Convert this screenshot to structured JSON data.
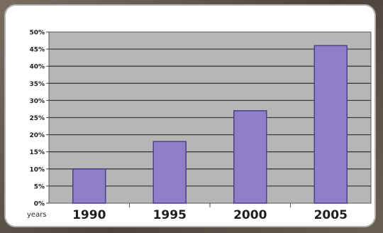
{
  "chart_data": {
    "type": "bar",
    "categories": [
      "1990",
      "1995",
      "2000",
      "2005"
    ],
    "values": [
      10,
      18,
      27,
      46
    ],
    "xlabel": "years",
    "ylabel": "",
    "ylim": [
      0,
      50
    ],
    "y_step": 5,
    "y_ticks": [
      "0%",
      "5%",
      "10%",
      "15%",
      "20%",
      "25%",
      "30%",
      "35%",
      "40%",
      "45%",
      "50%"
    ],
    "grid": true,
    "legend": "none",
    "colors": {
      "bar": "#8f7fc8",
      "bar_edge": "#4d3f88",
      "plot_bg": "#b6b6b6",
      "grid": "#3d3d3d",
      "text": "#1e1e1e"
    }
  }
}
